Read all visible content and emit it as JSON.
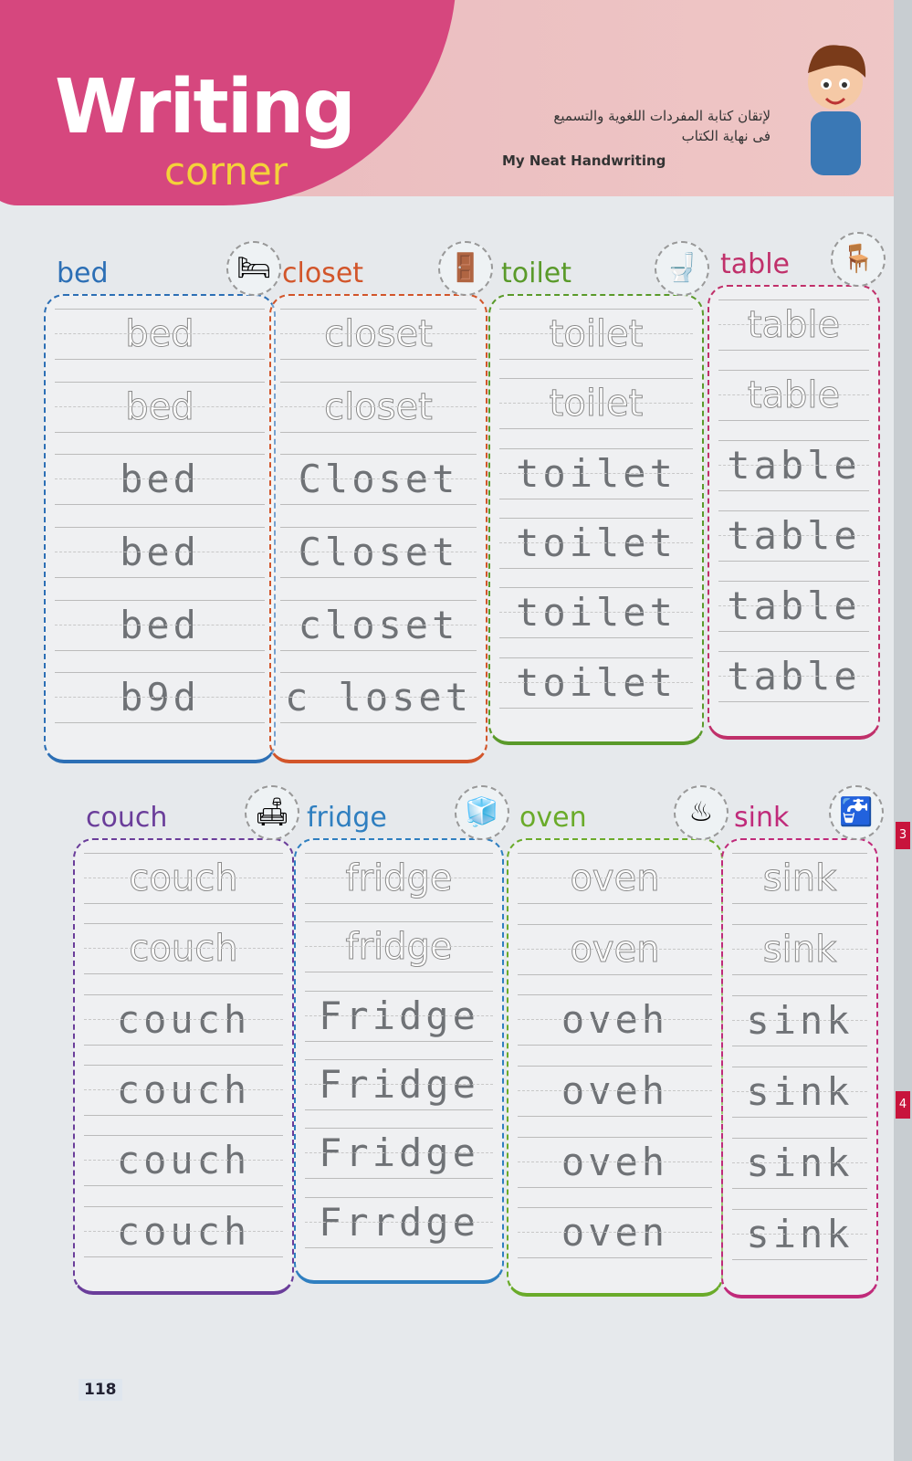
{
  "header": {
    "title": "Writing",
    "title2": "corner",
    "arabic_line1": "لإتقان كتابة المفردات اللغوية والتسميع",
    "arabic_line2": "فى نهاية الكتاب",
    "subtitle": "My Neat Handwriting"
  },
  "cards": [
    {
      "word": "bed",
      "color": "#2c6fb5",
      "icon": "bed-icon",
      "glyph": "🛏",
      "traced": [
        "bed",
        "bed"
      ],
      "handwritten": [
        "bed",
        "bed",
        "bed",
        "b9d"
      ]
    },
    {
      "word": "closet",
      "color": "#d2552a",
      "icon": "closet-icon",
      "glyph": "🚪",
      "traced": [
        "closet",
        "closet"
      ],
      "handwritten": [
        "Closet",
        "Closet",
        "closet",
        "c loset"
      ]
    },
    {
      "word": "toilet",
      "color": "#5a9a2a",
      "icon": "toilet-icon",
      "glyph": "🚽",
      "traced": [
        "toilet",
        "toilet"
      ],
      "handwritten": [
        "toilet",
        "toilet",
        "toilet",
        "toilet"
      ]
    },
    {
      "word": "table",
      "color": "#c0306a",
      "icon": "table-icon",
      "glyph": "🪑",
      "traced": [
        "table",
        "table"
      ],
      "handwritten": [
        "table",
        "table",
        "table",
        "table"
      ]
    },
    {
      "word": "couch",
      "color": "#6a3d9a",
      "icon": "couch-icon",
      "glyph": "🛋",
      "traced": [
        "couch",
        "couch"
      ],
      "handwritten": [
        "couch",
        "couch",
        "couch",
        "couch"
      ]
    },
    {
      "word": "fridge",
      "color": "#2f7fc0",
      "icon": "fridge-icon",
      "glyph": "🧊",
      "traced": [
        "fridge",
        "fridge"
      ],
      "handwritten": [
        "Fridge",
        "Fridge",
        "Fridge",
        "Frrdge"
      ]
    },
    {
      "word": "oven",
      "color": "#6aab2a",
      "icon": "oven-icon",
      "glyph": "♨",
      "traced": [
        "oven",
        "oven"
      ],
      "handwritten": [
        "oveh",
        "oveh",
        "oveh",
        "oven"
      ]
    },
    {
      "word": "sink",
      "color": "#c02a7a",
      "icon": "sink-icon",
      "glyph": "🚰",
      "traced": [
        "sink",
        "sink"
      ],
      "handwritten": [
        "sink",
        "sink",
        "sink",
        "sink"
      ]
    }
  ],
  "page_number": "118",
  "side_tabs": [
    "3",
    "4"
  ]
}
